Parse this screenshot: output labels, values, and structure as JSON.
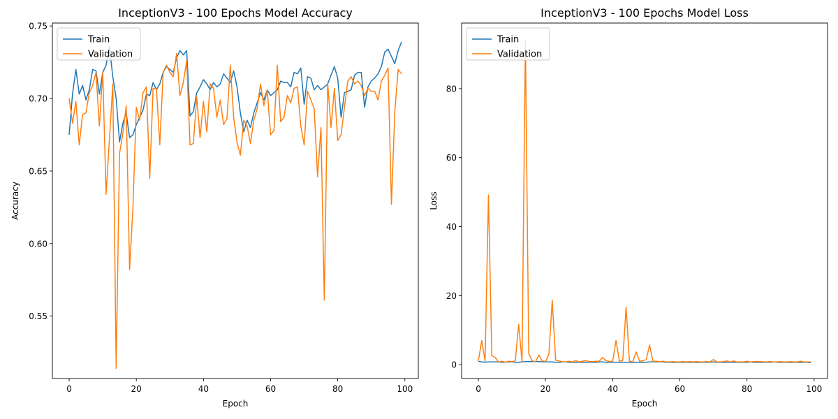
{
  "chart_data": [
    {
      "type": "line",
      "title": "InceptionV3 - 100 Epochs Model Accuracy",
      "xlabel": "Epoch",
      "ylabel": "Accuracy",
      "xlim": [
        -5,
        104
      ],
      "ylim": [
        0.507,
        0.752
      ],
      "xticks": [
        0,
        20,
        40,
        60,
        80,
        100
      ],
      "yticks": [
        0.55,
        0.6,
        0.65,
        0.7,
        0.75
      ],
      "ytick_labels": [
        "0.55",
        "0.60",
        "0.65",
        "0.70",
        "0.75"
      ],
      "legend": "top-left",
      "grid": false,
      "series": [
        {
          "name": "Train",
          "color": "#1f77b4",
          "values": [
            0.675,
            0.703,
            0.72,
            0.703,
            0.709,
            0.699,
            0.706,
            0.72,
            0.719,
            0.703,
            0.718,
            0.723,
            0.736,
            0.715,
            0.7,
            0.67,
            0.683,
            0.69,
            0.673,
            0.675,
            0.682,
            0.687,
            0.692,
            0.703,
            0.702,
            0.711,
            0.706,
            0.71,
            0.718,
            0.722,
            0.72,
            0.718,
            0.728,
            0.733,
            0.73,
            0.733,
            0.688,
            0.691,
            0.704,
            0.708,
            0.713,
            0.71,
            0.706,
            0.711,
            0.708,
            0.71,
            0.717,
            0.714,
            0.711,
            0.719,
            0.708,
            0.69,
            0.677,
            0.685,
            0.68,
            0.69,
            0.697,
            0.704,
            0.699,
            0.706,
            0.702,
            0.704,
            0.706,
            0.712,
            0.711,
            0.711,
            0.708,
            0.718,
            0.717,
            0.721,
            0.696,
            0.715,
            0.714,
            0.706,
            0.709,
            0.706,
            0.708,
            0.71,
            0.716,
            0.722,
            0.714,
            0.687,
            0.704,
            0.705,
            0.706,
            0.716,
            0.718,
            0.718,
            0.694,
            0.708,
            0.712,
            0.714,
            0.717,
            0.722,
            0.732,
            0.734,
            0.729,
            0.724,
            0.733,
            0.739
          ]
        },
        {
          "name": "Validation",
          "color": "#ff7f0e",
          "values": [
            0.7,
            0.683,
            0.698,
            0.668,
            0.689,
            0.69,
            0.704,
            0.709,
            0.718,
            0.681,
            0.718,
            0.634,
            0.672,
            0.71,
            0.514,
            0.662,
            0.676,
            0.695,
            0.582,
            0.625,
            0.694,
            0.685,
            0.704,
            0.708,
            0.645,
            0.707,
            0.707,
            0.668,
            0.718,
            0.723,
            0.718,
            0.715,
            0.731,
            0.702,
            0.711,
            0.726,
            0.668,
            0.669,
            0.701,
            0.673,
            0.698,
            0.677,
            0.71,
            0.707,
            0.687,
            0.699,
            0.682,
            0.686,
            0.723,
            0.687,
            0.67,
            0.661,
            0.685,
            0.681,
            0.669,
            0.685,
            0.693,
            0.71,
            0.695,
            0.706,
            0.675,
            0.678,
            0.723,
            0.684,
            0.687,
            0.702,
            0.697,
            0.707,
            0.708,
            0.681,
            0.668,
            0.705,
            0.699,
            0.693,
            0.646,
            0.68,
            0.561,
            0.711,
            0.68,
            0.707,
            0.671,
            0.675,
            0.694,
            0.712,
            0.715,
            0.71,
            0.712,
            0.709,
            0.702,
            0.707,
            0.705,
            0.705,
            0.699,
            0.712,
            0.716,
            0.721,
            0.627,
            0.691,
            0.72,
            0.717
          ]
        }
      ]
    },
    {
      "type": "line",
      "title": "InceptionV3 - 100 Epochs Model Loss",
      "xlabel": "Epoch",
      "ylabel": "Loss",
      "xlim": [
        -5,
        104
      ],
      "ylim": [
        -4,
        99
      ],
      "xticks": [
        0,
        20,
        40,
        60,
        80,
        100
      ],
      "yticks": [
        0,
        20,
        40,
        60,
        80
      ],
      "ytick_labels": [
        "0",
        "20",
        "40",
        "60",
        "80"
      ],
      "legend": "top-left",
      "grid": false,
      "series": [
        {
          "name": "Train",
          "color": "#1f77b4",
          "values": [
            1.0,
            0.8,
            0.7,
            0.8,
            0.8,
            0.8,
            0.8,
            0.7,
            0.7,
            0.8,
            0.8,
            0.7,
            0.7,
            0.8,
            0.9,
            0.9,
            0.9,
            0.9,
            0.9,
            0.8,
            0.8,
            0.8,
            0.8,
            0.7,
            0.7,
            0.8,
            0.8,
            0.7,
            0.7,
            0.7,
            0.7,
            0.7,
            0.7,
            0.7,
            0.7,
            0.7,
            0.8,
            0.8,
            0.7,
            0.7,
            0.7,
            0.7,
            0.7,
            0.7,
            0.7,
            0.7,
            0.7,
            0.7,
            0.7,
            0.7,
            0.7,
            0.8,
            0.8,
            0.8,
            0.8,
            0.8,
            0.7,
            0.7,
            0.7,
            0.7,
            0.7,
            0.7,
            0.7,
            0.7,
            0.7,
            0.7,
            0.7,
            0.7,
            0.7,
            0.7,
            0.8,
            0.7,
            0.7,
            0.7,
            0.7,
            0.7,
            0.7,
            0.7,
            0.7,
            0.7,
            0.7,
            0.8,
            0.7,
            0.7,
            0.7,
            0.7,
            0.7,
            0.7,
            0.8,
            0.7,
            0.7,
            0.7,
            0.7,
            0.7,
            0.7,
            0.7,
            0.7,
            0.7,
            0.7,
            0.6
          ]
        },
        {
          "name": "Validation",
          "color": "#ff7f0e",
          "values": [
            1.1,
            7.0,
            1.0,
            49.2,
            2.6,
            2.1,
            0.8,
            1.0,
            0.7,
            1.0,
            0.9,
            1.1,
            11.7,
            0.9,
            94.1,
            3.2,
            1.2,
            0.8,
            2.8,
            1.1,
            0.9,
            3.0,
            18.7,
            1.3,
            1.1,
            0.9,
            0.8,
            1.0,
            0.8,
            1.2,
            0.8,
            1.0,
            1.2,
            0.9,
            0.9,
            1.0,
            1.0,
            2.1,
            1.2,
            0.9,
            1.0,
            7.0,
            1.0,
            1.2,
            16.7,
            1.0,
            0.9,
            3.7,
            1.0,
            1.1,
            1.5,
            5.7,
            0.9,
            1.0,
            0.9,
            1.0,
            0.8,
            0.8,
            0.9,
            0.8,
            0.8,
            0.9,
            0.8,
            0.9,
            0.8,
            0.9,
            0.8,
            0.8,
            0.9,
            0.8,
            1.5,
            0.8,
            0.8,
            0.9,
            1.1,
            0.8,
            1.1,
            0.8,
            0.8,
            0.8,
            1.0,
            0.8,
            0.9,
            0.9,
            0.9,
            0.8,
            0.8,
            0.9,
            0.8,
            0.8,
            0.9,
            0.8,
            0.8,
            0.9,
            0.8,
            0.8,
            1.0,
            0.8,
            0.8,
            0.8
          ]
        }
      ]
    }
  ]
}
